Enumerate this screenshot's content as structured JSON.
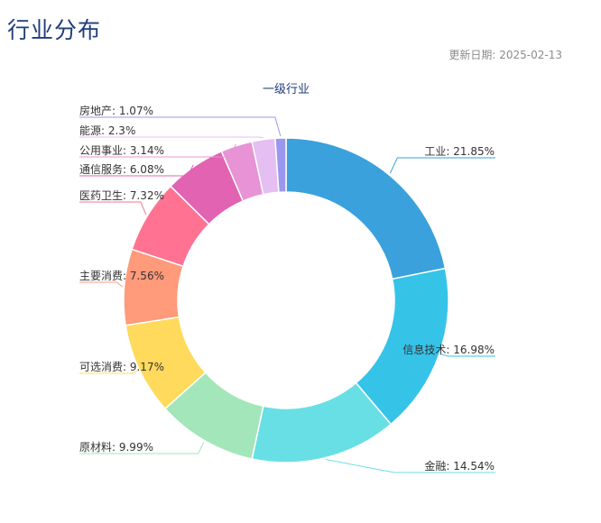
{
  "header": {
    "title": "行业分布",
    "update_date": "更新日期: 2025-02-13"
  },
  "chart_data": {
    "type": "pie",
    "variant": "donut",
    "title": "一级行业",
    "categories": [
      "工业",
      "信息技术",
      "金融",
      "原材料",
      "可选消费",
      "主要消费",
      "医药卫生",
      "通信服务",
      "公用事业",
      "能源",
      "房地产"
    ],
    "values": [
      21.85,
      16.98,
      14.54,
      9.99,
      9.17,
      7.56,
      7.32,
      6.08,
      3.14,
      2.3,
      1.07
    ],
    "labels": [
      "工业: 21.85%",
      "信息技术: 16.98%",
      "金融: 14.54%",
      "原材料: 9.99%",
      "可选消费: 9.17%",
      "主要消费: 7.56%",
      "医药卫生: 7.32%",
      "通信服务: 6.08%",
      "公用事业: 3.14%",
      "能源: 2.3%",
      "房地产: 1.07%"
    ],
    "colors": [
      "#3aa1dc",
      "#36c3e8",
      "#68dfe4",
      "#a3e6b9",
      "#ffda5c",
      "#ff9a7a",
      "#ff7292",
      "#e163b2",
      "#e893d6",
      "#e5bff2",
      "#9b97ee"
    ],
    "unit": "%",
    "legend": "none"
  }
}
